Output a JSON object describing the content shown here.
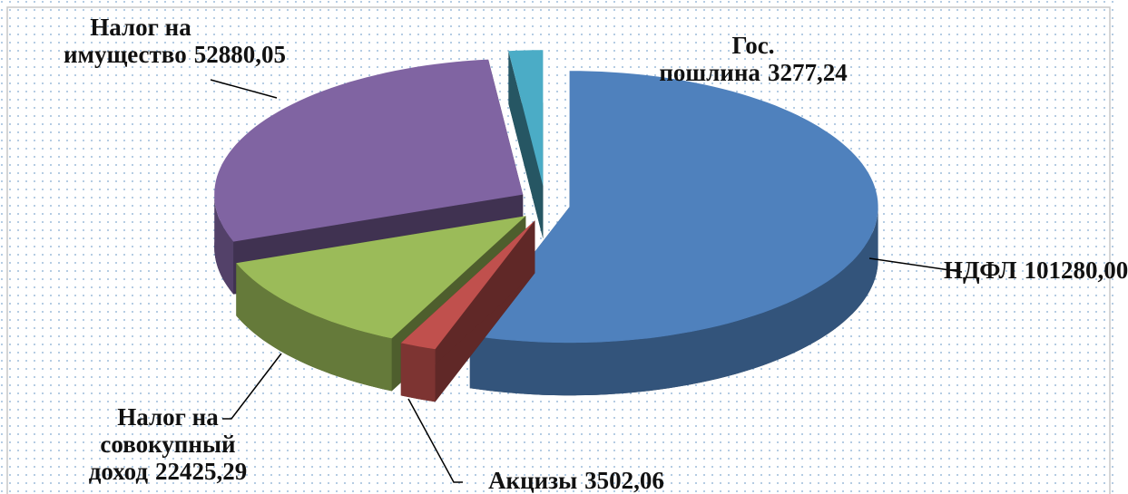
{
  "chart_data": {
    "type": "pie",
    "categories": [
      "НДФЛ",
      "Акцизы",
      "Налог на совокупный доход",
      "Налог на имущество",
      "Гос. пошлина"
    ],
    "values": [
      101280.0,
      3502.06,
      22425.29,
      52880.05,
      3277.24
    ],
    "value_labels": [
      "101280,00",
      "3502,06",
      "22425,29",
      "52880,05",
      "3277,24"
    ],
    "colors": [
      "#4f81bd",
      "#c0504d",
      "#9bbb59",
      "#8064a2",
      "#4bacc6"
    ]
  }
}
